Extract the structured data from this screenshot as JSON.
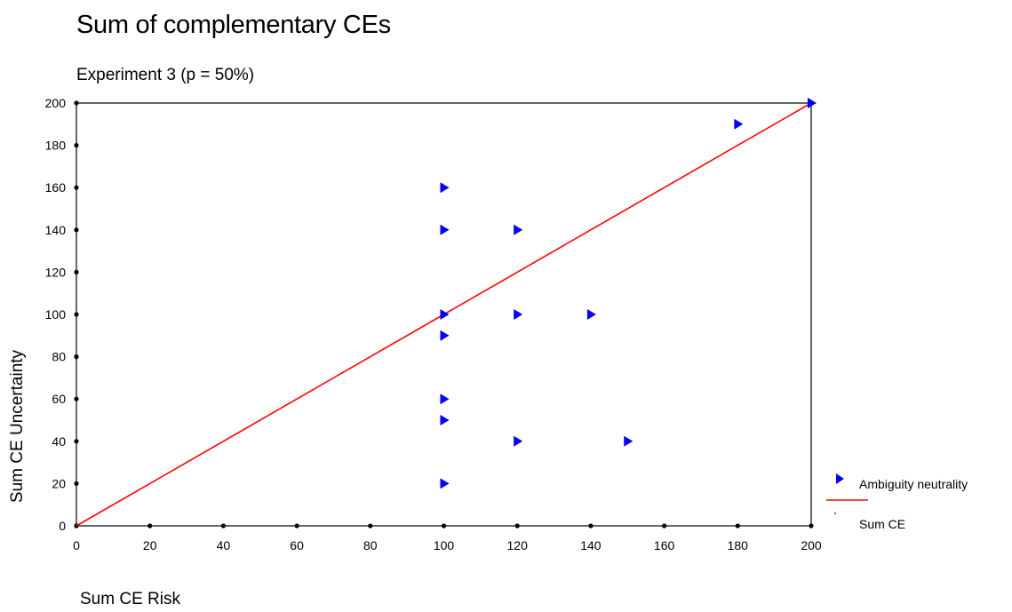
{
  "chart_data": {
    "type": "scatter",
    "title": "Sum of complementary CEs",
    "subtitle": "Experiment 3 (p = 50%)",
    "xlabel": "Sum CE Risk",
    "ylabel": "Sum CE Uncertainty",
    "xlim": [
      0,
      200
    ],
    "ylim": [
      0,
      200
    ],
    "xticks": [
      0,
      20,
      40,
      60,
      80,
      100,
      120,
      140,
      160,
      180,
      200
    ],
    "yticks": [
      0,
      20,
      40,
      60,
      80,
      100,
      120,
      140,
      160,
      180,
      200
    ],
    "grid": false,
    "legend_position": "right",
    "series": [
      {
        "name": "Ambiguity neutrality",
        "kind": "scatter",
        "marker": "triangle-right",
        "color": "#0000ff",
        "points": [
          [
            100,
            160
          ],
          [
            100,
            140
          ],
          [
            120,
            140
          ],
          [
            100,
            100
          ],
          [
            120,
            100
          ],
          [
            140,
            100
          ],
          [
            100,
            90
          ],
          [
            100,
            60
          ],
          [
            100,
            50
          ],
          [
            120,
            40
          ],
          [
            150,
            40
          ],
          [
            100,
            20
          ],
          [
            180,
            190
          ],
          [
            200,
            200
          ]
        ]
      },
      {
        "name": "Sum CE",
        "kind": "line",
        "color": "#ff0000",
        "points": [
          [
            0,
            0
          ],
          [
            20,
            20
          ],
          [
            40,
            40
          ],
          [
            60,
            60
          ],
          [
            80,
            80
          ],
          [
            100,
            100
          ],
          [
            110,
            110
          ],
          [
            120,
            120
          ],
          [
            140,
            140
          ],
          [
            160,
            160
          ],
          [
            180,
            180
          ],
          [
            200,
            200
          ]
        ]
      }
    ]
  }
}
